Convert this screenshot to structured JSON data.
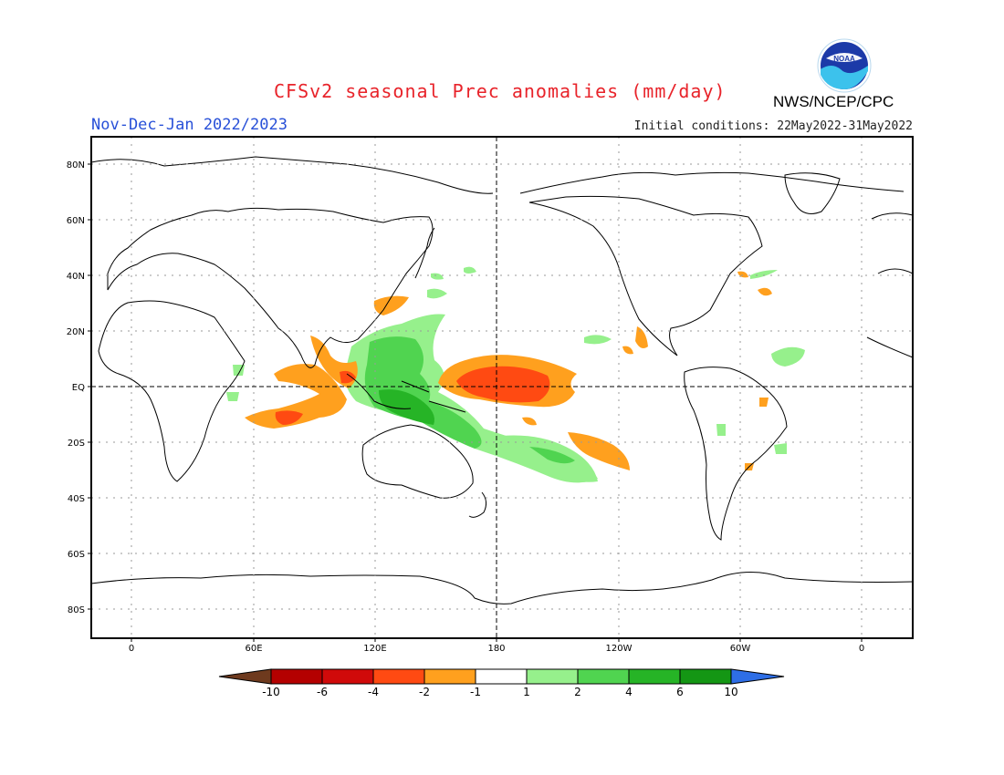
{
  "header": {
    "title": "CFSv2 seasonal Prec anomalies (mm/day)",
    "period": "Nov-Dec-Jan 2022/2023",
    "initial_conditions": "Initial conditions: 22May2022-31May2022",
    "agency": "NWS/NCEP/CPC",
    "logo_text": "NOAA",
    "title_color": "#e8232a",
    "period_color": "#2850d8"
  },
  "map": {
    "lat_ticks": [
      "80N",
      "60N",
      "40N",
      "20N",
      "EQ",
      "20S",
      "40S",
      "60S",
      "80S"
    ],
    "lon_ticks": [
      "0",
      "60E",
      "120E",
      "180",
      "120W",
      "60W",
      "0"
    ]
  },
  "legend": {
    "labels": [
      "-10",
      "-6",
      "-4",
      "-2",
      "-1",
      "1",
      "2",
      "4",
      "6",
      "10"
    ],
    "colors": [
      "#6e3a1e",
      "#b40000",
      "#d00a0a",
      "#ff4a12",
      "#ffa01e",
      "#ffffff",
      "#96f08c",
      "#50d450",
      "#26b426",
      "#149614",
      "#2e6ee6"
    ]
  }
}
